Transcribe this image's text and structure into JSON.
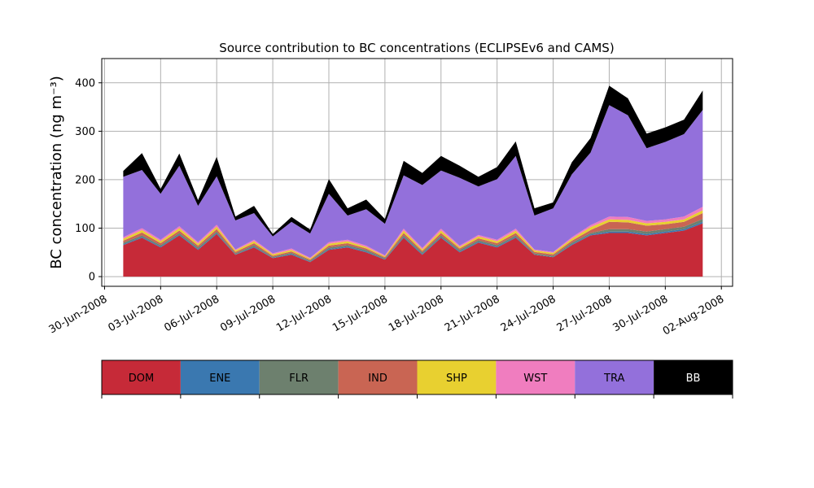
{
  "chart_data": {
    "type": "area",
    "stacked": true,
    "title": "Source contribution to BC concentrations (ECLIPSEv6 and CAMS)",
    "xlabel": "",
    "ylabel": "BC concentration (ng m⁻³)",
    "ylim": [
      -20,
      450
    ],
    "yticks": [
      0,
      100,
      200,
      300,
      400
    ],
    "xlim_days": [
      -0.15,
      33.6
    ],
    "xticks": [
      "30-Jun-2008",
      "03-Jul-2008",
      "06-Jul-2008",
      "09-Jul-2008",
      "12-Jul-2008",
      "15-Jul-2008",
      "18-Jul-2008",
      "21-Jul-2008",
      "24-Jul-2008",
      "27-Jul-2008",
      "30-Jul-2008",
      "02-Aug-2008"
    ],
    "x_dates": [
      "01-Jul-2008",
      "02-Jul-2008",
      "03-Jul-2008",
      "04-Jul-2008",
      "05-Jul-2008",
      "06-Jul-2008",
      "07-Jul-2008",
      "08-Jul-2008",
      "09-Jul-2008",
      "10-Jul-2008",
      "11-Jul-2008",
      "12-Jul-2008",
      "13-Jul-2008",
      "14-Jul-2008",
      "15-Jul-2008",
      "16-Jul-2008",
      "17-Jul-2008",
      "18-Jul-2008",
      "19-Jul-2008",
      "20-Jul-2008",
      "21-Jul-2008",
      "22-Jul-2008",
      "23-Jul-2008",
      "24-Jul-2008",
      "25-Jul-2008",
      "26-Jul-2008",
      "27-Jul-2008",
      "28-Jul-2008",
      "29-Jul-2008",
      "30-Jul-2008",
      "31-Jul-2008",
      "01-Aug-2008"
    ],
    "grid": true,
    "legend_position": "below",
    "series": [
      {
        "name": "DOM",
        "color": "#c62a38",
        "values": [
          65,
          80,
          60,
          85,
          55,
          88,
          45,
          60,
          38,
          45,
          30,
          55,
          60,
          50,
          35,
          80,
          45,
          80,
          50,
          70,
          60,
          80,
          45,
          40,
          65,
          85,
          90,
          90,
          85,
          90,
          95,
          110
        ]
      },
      {
        "name": "ENE",
        "color": "#3a78b0",
        "values": [
          2,
          2,
          2,
          2,
          2,
          2,
          1,
          2,
          1,
          2,
          1,
          2,
          2,
          2,
          1,
          2,
          2,
          2,
          2,
          2,
          2,
          2,
          1,
          1,
          2,
          2,
          3,
          3,
          3,
          3,
          3,
          3
        ]
      },
      {
        "name": "FLR",
        "color": "#6d806e",
        "values": [
          3,
          3,
          3,
          3,
          3,
          3,
          2,
          3,
          2,
          2,
          2,
          3,
          3,
          3,
          2,
          3,
          3,
          3,
          3,
          3,
          3,
          3,
          2,
          2,
          3,
          3,
          5,
          5,
          5,
          5,
          5,
          6
        ]
      },
      {
        "name": "IND",
        "color": "#c96553",
        "values": [
          4,
          6,
          4,
          5,
          4,
          5,
          3,
          4,
          2,
          3,
          2,
          4,
          4,
          3,
          2,
          5,
          3,
          5,
          3,
          4,
          4,
          5,
          3,
          3,
          4,
          6,
          15,
          14,
          12,
          10,
          10,
          12
        ]
      },
      {
        "name": "SHP",
        "color": "#e8d030",
        "values": [
          4,
          5,
          4,
          5,
          4,
          5,
          3,
          4,
          3,
          3,
          2,
          4,
          4,
          3,
          2,
          5,
          3,
          5,
          3,
          4,
          4,
          5,
          3,
          3,
          4,
          6,
          5,
          5,
          5,
          5,
          5,
          6
        ]
      },
      {
        "name": "WST",
        "color": "#f07dbf",
        "values": [
          3,
          4,
          3,
          4,
          3,
          4,
          2,
          3,
          2,
          3,
          2,
          3,
          3,
          3,
          2,
          4,
          3,
          4,
          3,
          3,
          3,
          4,
          2,
          2,
          3,
          4,
          6,
          6,
          5,
          5,
          6,
          7
        ]
      },
      {
        "name": "TRA",
        "color": "#9370db",
        "values": [
          125,
          120,
          95,
          125,
          75,
          100,
          60,
          55,
          35,
          55,
          50,
          100,
          50,
          75,
          65,
          110,
          130,
          120,
          140,
          100,
          125,
          150,
          70,
          90,
          130,
          150,
          230,
          210,
          150,
          160,
          170,
          200
        ]
      },
      {
        "name": "BB",
        "color": "#000000",
        "values": [
          12,
          35,
          10,
          25,
          12,
          40,
          8,
          15,
          5,
          10,
          8,
          30,
          15,
          20,
          10,
          30,
          25,
          30,
          25,
          20,
          25,
          30,
          15,
          12,
          25,
          30,
          40,
          35,
          30,
          30,
          30,
          40
        ]
      }
    ]
  }
}
